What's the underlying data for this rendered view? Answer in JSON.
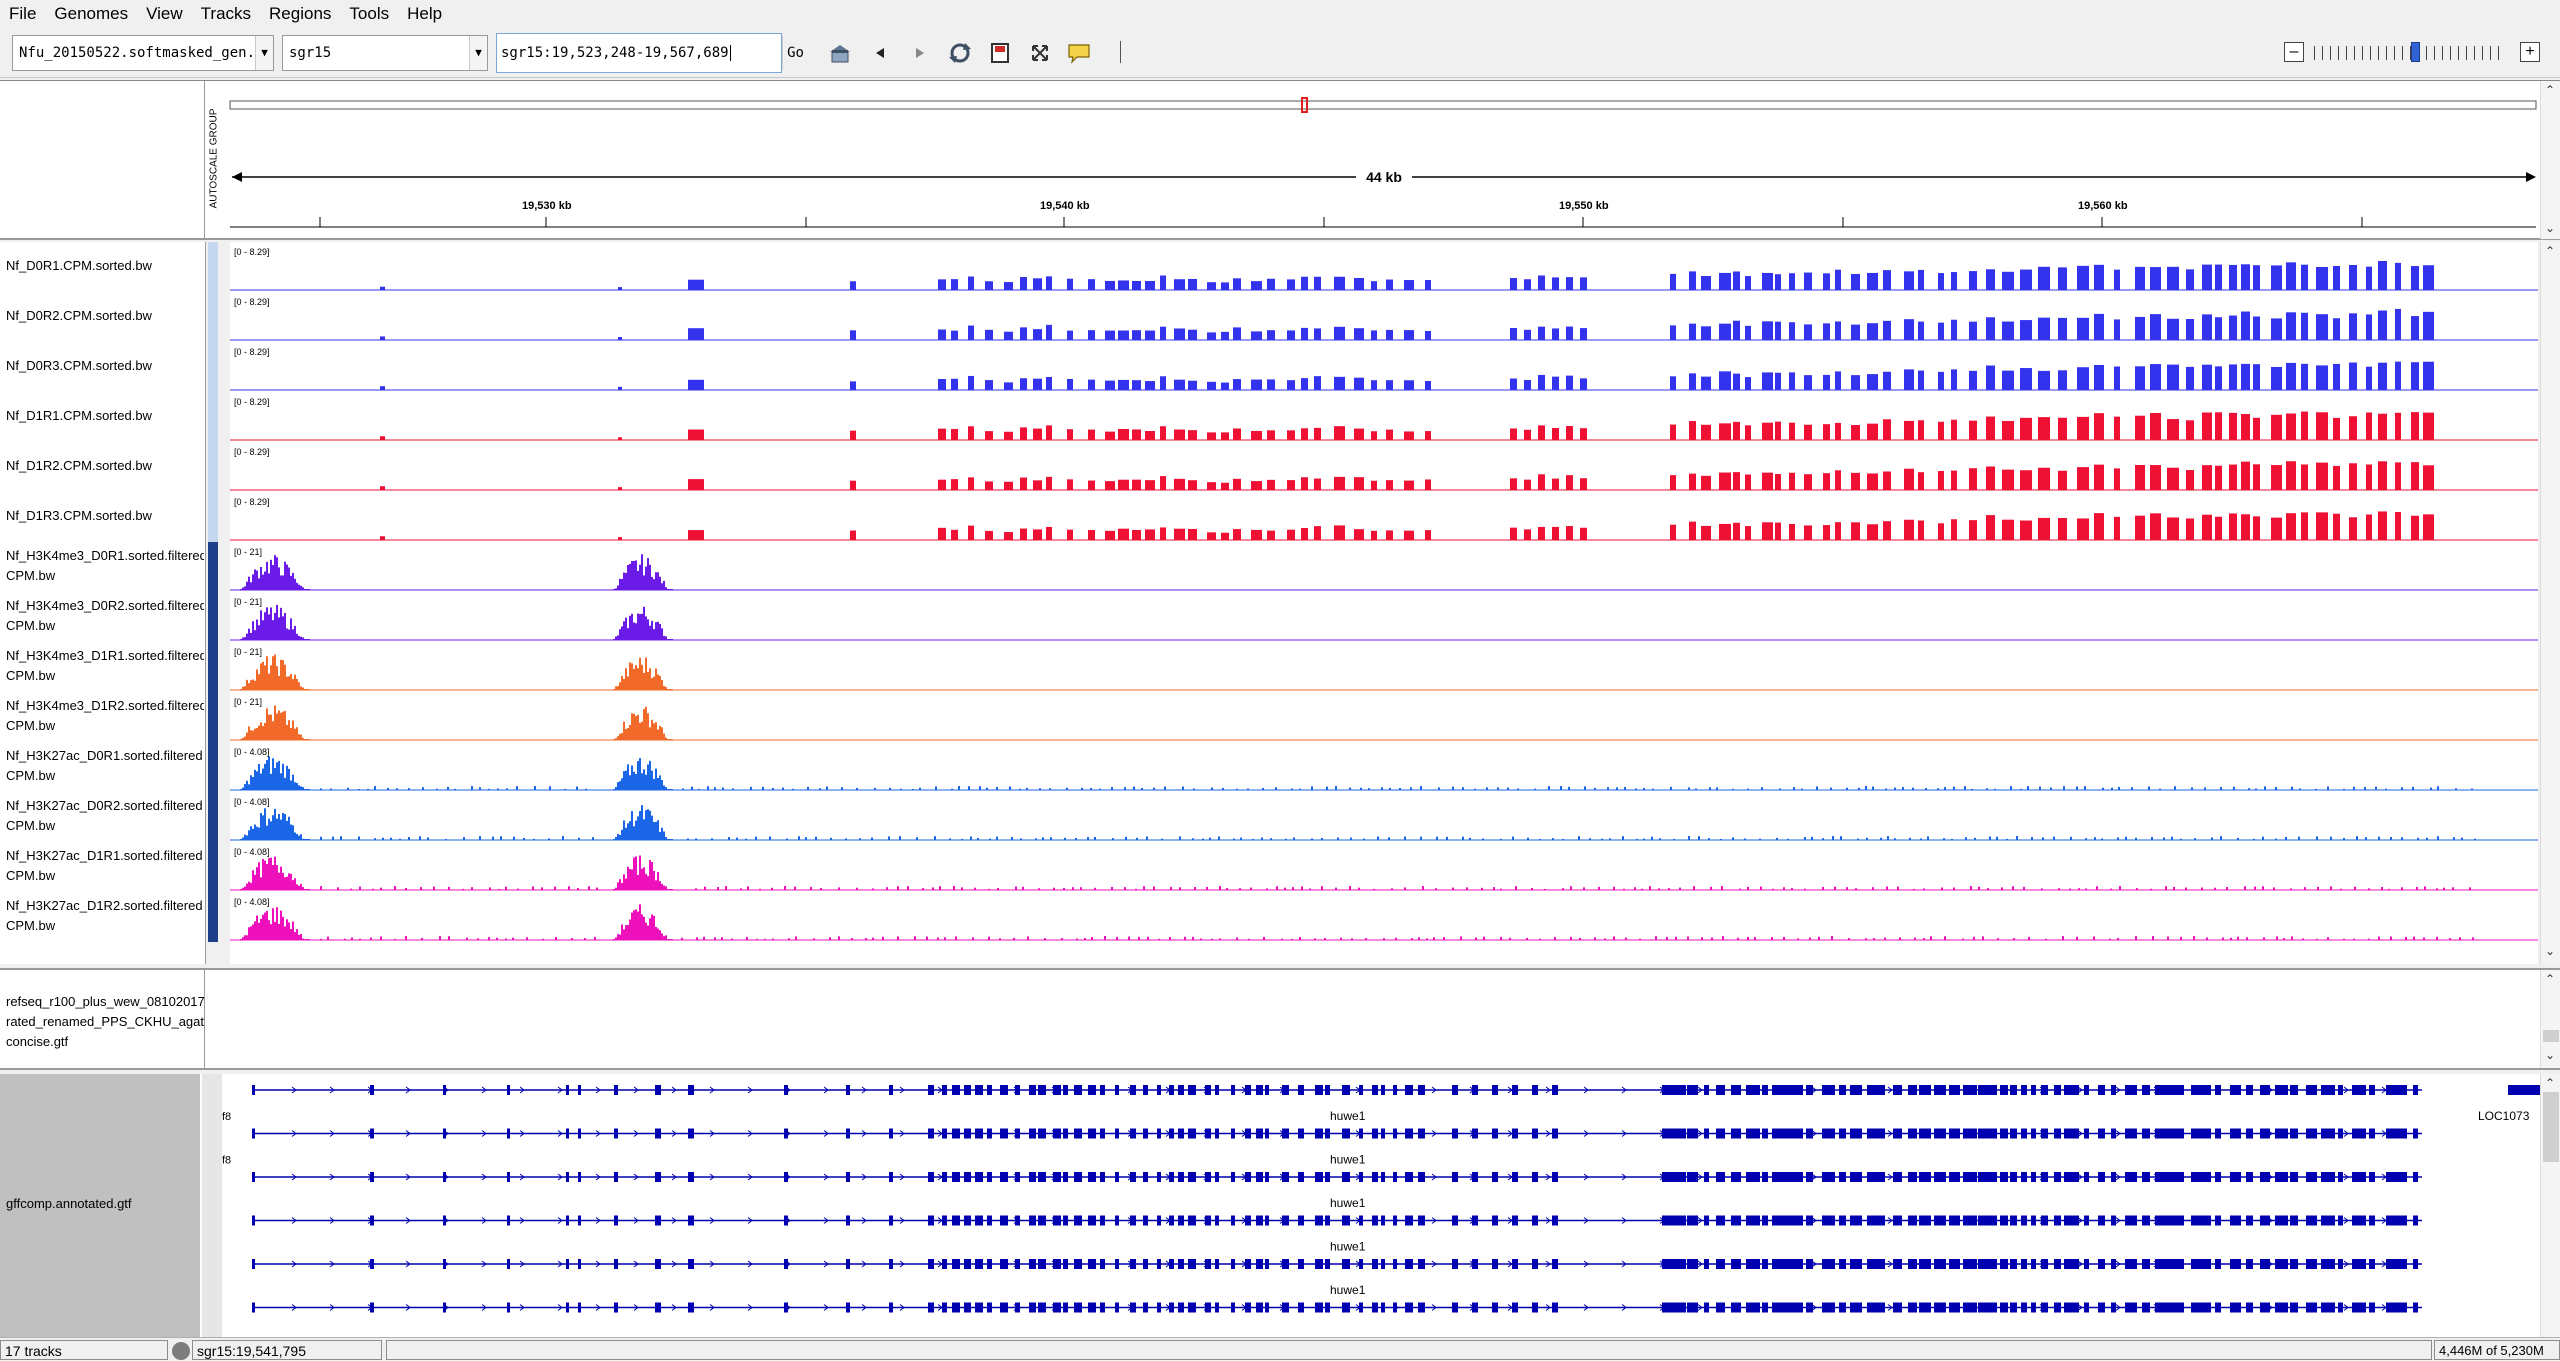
{
  "menu": [
    "File",
    "Genomes",
    "View",
    "Tracks",
    "Regions",
    "Tools",
    "Help"
  ],
  "toolbar": {
    "genome_value": "Nfu_20150522.softmasked_gen..",
    "chromosome_value": "sgr15",
    "locus_value": "sgr15:19,523,248-19,567,689",
    "go_label": "Go"
  },
  "ruler": {
    "span_label": "44 kb",
    "tick_labels": [
      "19,530 kb",
      "19,540 kb",
      "19,550 kb",
      "19,560 kb"
    ],
    "autoscale_label": "AUTOSCALE GROUP"
  },
  "tracks": [
    {
      "name": "Nf_D0R1.CPM.sorted.bw",
      "range": "[0 - 8.29]",
      "color": "#3333ee",
      "kind": "rna",
      "attr": "#c4d7ee"
    },
    {
      "name": "Nf_D0R2.CPM.sorted.bw",
      "range": "[0 - 8.29]",
      "color": "#3333ee",
      "kind": "rna",
      "attr": "#c4d7ee"
    },
    {
      "name": "Nf_D0R3.CPM.sorted.bw",
      "range": "[0 - 8.29]",
      "color": "#3333ee",
      "kind": "rna",
      "attr": "#c4d7ee"
    },
    {
      "name": "Nf_D1R1.CPM.sorted.bw",
      "range": "[0 - 8.29]",
      "color": "#ee1133",
      "kind": "rna",
      "attr": "#c4d7ee"
    },
    {
      "name": "Nf_D1R2.CPM.sorted.bw",
      "range": "[0 - 8.29]",
      "color": "#ee1133",
      "kind": "rna",
      "attr": "#c4d7ee"
    },
    {
      "name": "Nf_D1R3.CPM.sorted.bw",
      "range": "[0 - 8.29]",
      "color": "#ee1133",
      "kind": "rna",
      "attr": "#c4d7ee"
    },
    {
      "name": "Nf_H3K4me3_D0R1.sorted.filtered\nCPM.bw",
      "range": "[0 - 21]",
      "color": "#6a1be8",
      "kind": "chip",
      "attr": "#1d3f8a"
    },
    {
      "name": "Nf_H3K4me3_D0R2.sorted.filtered\nCPM.bw",
      "range": "[0 - 21]",
      "color": "#6a1be8",
      "kind": "chip",
      "attr": "#1d3f8a"
    },
    {
      "name": "Nf_H3K4me3_D1R1.sorted.filtered\nCPM.bw",
      "range": "[0 - 21]",
      "color": "#f26a2a",
      "kind": "chip",
      "attr": "#1d3f8a"
    },
    {
      "name": "Nf_H3K4me3_D1R2.sorted.filtered\nCPM.bw",
      "range": "[0 - 21]",
      "color": "#f26a2a",
      "kind": "chip",
      "attr": "#1d3f8a"
    },
    {
      "name": "Nf_H3K27ac_D0R1.sorted.filtered\nCPM.bw",
      "range": "[0 - 4.08]",
      "color": "#1a66e6",
      "kind": "chip2",
      "attr": "#1d3f8a"
    },
    {
      "name": "Nf_H3K27ac_D0R2.sorted.filtered\nCPM.bw",
      "range": "[0 - 4.08]",
      "color": "#1a66e6",
      "kind": "chip2",
      "attr": "#1d3f8a"
    },
    {
      "name": "Nf_H3K27ac_D1R1.sorted.filtered\nCPM.bw",
      "range": "[0 - 4.08]",
      "color": "#ee11bb",
      "kind": "chip2",
      "attr": "#1d3f8a"
    },
    {
      "name": "Nf_H3K27ac_D1R2.sorted.filtered\nCPM.bw",
      "range": "[0 - 4.08]",
      "color": "#ee11bb",
      "kind": "chip2",
      "attr": "#1d3f8a"
    }
  ],
  "feature_track": {
    "name": "refseq_r100_plus_wew_08102017\nrated_renamed_PPS_CKHU_agat\nconcise.gtf"
  },
  "gene_track": {
    "name": "gffcomp.annotated.gtf",
    "gene_labels": [
      "huwe1",
      "huwe1",
      "huwe1",
      "huwe1",
      "huwe1"
    ],
    "left_labels": [
      "f8",
      "f8"
    ],
    "right_label": "LOC1073",
    "color": "#0000b0"
  },
  "status": {
    "track_count": "17 tracks",
    "position": "sgr15:19,541,795",
    "memory": "4,446M of 5,230M"
  }
}
